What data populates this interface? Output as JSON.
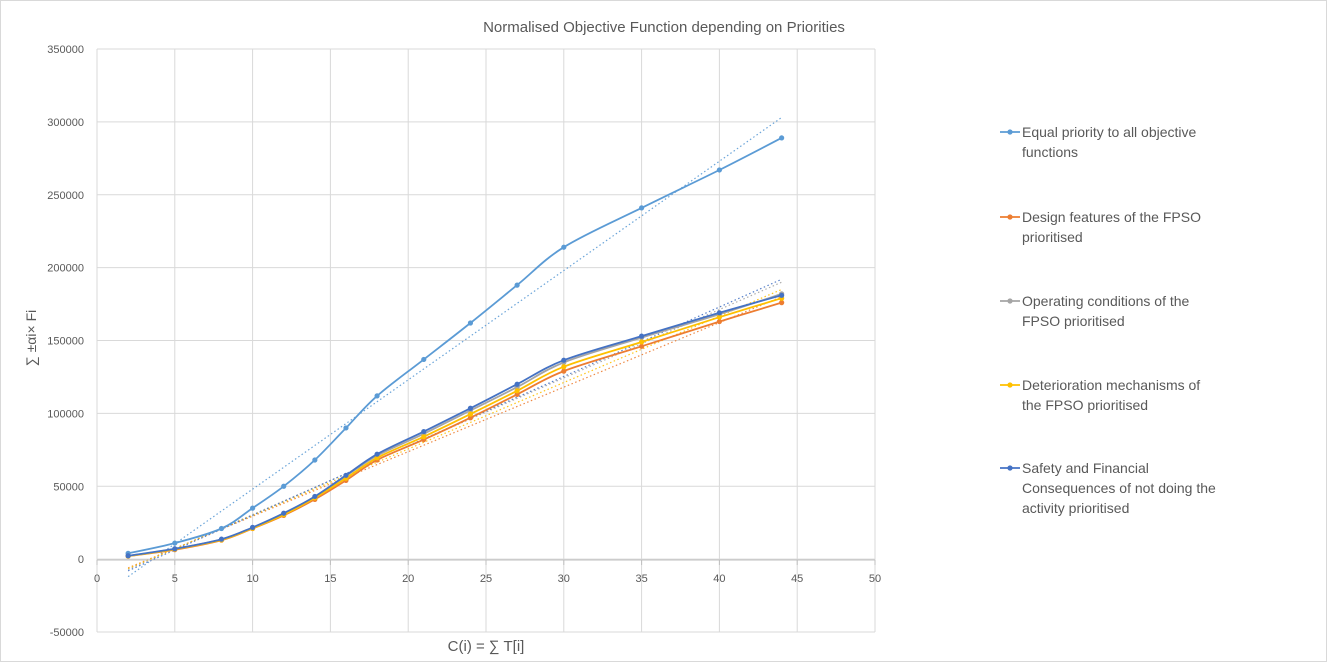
{
  "chart_data": {
    "type": "line",
    "title": "Normalised Objective Function depending on Priorities",
    "xlabel": "C(i) = ∑ T[i]",
    "ylabel": "∑ ±αi× Fi",
    "xlim": [
      0,
      50
    ],
    "ylim": [
      -50000,
      350000
    ],
    "xticks": [
      0,
      5,
      10,
      15,
      20,
      25,
      30,
      35,
      40,
      45,
      50
    ],
    "yticks": [
      -50000,
      0,
      50000,
      100000,
      150000,
      200000,
      250000,
      300000,
      350000
    ],
    "grid": true,
    "legend_position": "right",
    "trendlines": "linear (dotted)",
    "x": [
      2,
      5,
      8,
      10,
      12,
      14,
      16,
      18,
      21,
      24,
      27,
      30,
      35,
      40,
      44
    ],
    "series": [
      {
        "name": "Equal priority to all objective functions",
        "legend_lines": [
          "Equal priority to all objective",
          "functions"
        ],
        "color": "#5b9bd5",
        "values": [
          4000,
          11000,
          21000,
          35000,
          50000,
          68000,
          90000,
          112000,
          137000,
          162000,
          188000,
          214000,
          241000,
          267000,
          289000
        ],
        "trend": [
          -12000,
          303000
        ]
      },
      {
        "name": "Design features of the FPSO prioritised",
        "legend_lines": [
          "Design features of the FPSO",
          "prioritised"
        ],
        "color": "#ed7d31",
        "values": [
          2000,
          6500,
          13000,
          21000,
          30000,
          41000,
          54000,
          68000,
          82000,
          97000,
          113000,
          129000,
          146000,
          163000,
          176000
        ],
        "trend": [
          -6000,
          180000
        ]
      },
      {
        "name": "Operating conditions of the FPSO prioritised",
        "legend_lines": [
          "Operating conditions of the",
          "FPSO prioritised"
        ],
        "color": "#a5a5a5",
        "values": [
          2200,
          7000,
          13500,
          21500,
          31000,
          42500,
          57000,
          71000,
          86000,
          102000,
          118000,
          135000,
          152000,
          168000,
          182000
        ],
        "trend": [
          -7000,
          190000
        ]
      },
      {
        "name": "Deterioration mechanisms of the FPSO prioritised",
        "legend_lines": [
          "Deterioration mechanisms of",
          "the FPSO prioritised"
        ],
        "color": "#ffc000",
        "values": [
          2100,
          6800,
          13200,
          21200,
          30500,
          42000,
          55500,
          69500,
          84000,
          99500,
          115500,
          132000,
          149000,
          166000,
          179000
        ],
        "trend": [
          -6500,
          185000
        ]
      },
      {
        "name": "Safety and Financial Consequences of not doing the activity prioritised",
        "legend_lines": [
          "Safety and Financial",
          "Consequences of not doing the",
          "activity prioritised"
        ],
        "color": "#4472c4",
        "values": [
          2300,
          7100,
          13700,
          21800,
          31500,
          43000,
          57500,
          72000,
          87500,
          103500,
          120000,
          136500,
          153000,
          169000,
          181000
        ],
        "trend": [
          -8000,
          192000
        ]
      }
    ]
  }
}
